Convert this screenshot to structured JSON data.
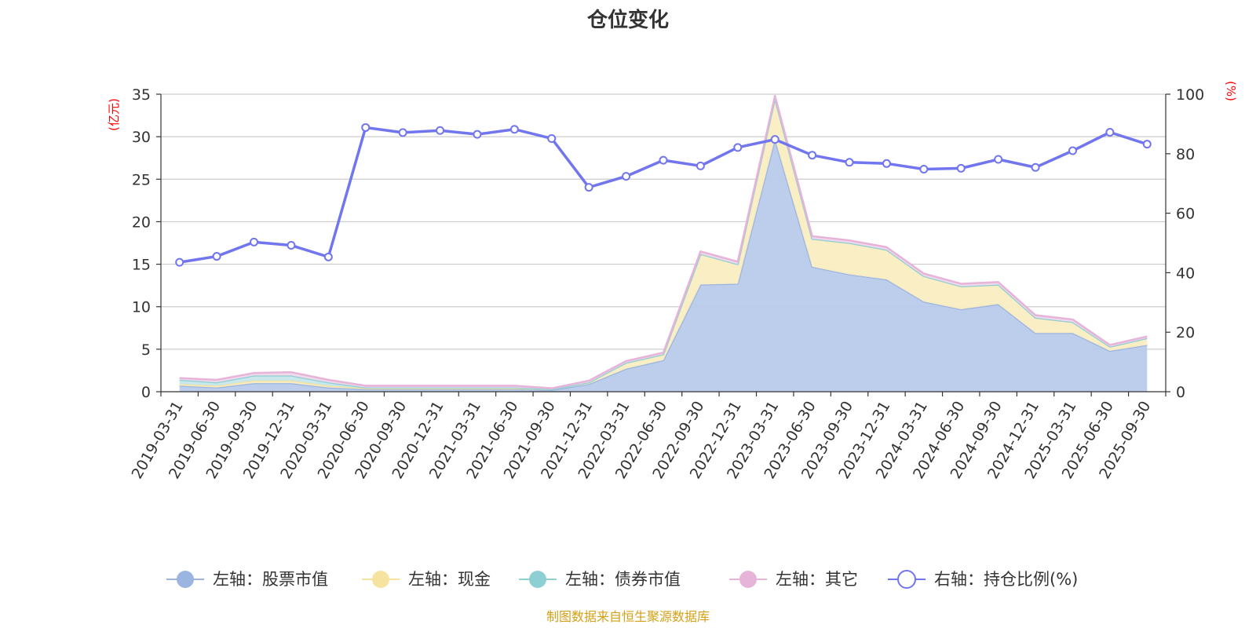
{
  "chart_data": {
    "type": "area+line",
    "title": "仓位变化",
    "left_axis_unit": "(亿元)",
    "right_axis_unit": "(%)",
    "left_ylim": [
      0,
      35
    ],
    "left_ticks": [
      "0",
      "5",
      "10",
      "15",
      "20",
      "25",
      "30",
      "35"
    ],
    "right_ylim": [
      0,
      100
    ],
    "right_ticks": [
      "0",
      "20",
      "40",
      "60",
      "80",
      "100"
    ],
    "categories": [
      "2019-03-31",
      "2019-06-30",
      "2019-09-30",
      "2019-12-31",
      "2020-03-31",
      "2020-06-30",
      "2020-09-30",
      "2020-12-31",
      "2021-03-31",
      "2021-06-30",
      "2021-09-30",
      "2021-12-31",
      "2022-03-31",
      "2022-06-30",
      "2022-09-30",
      "2022-12-31",
      "2023-03-31",
      "2023-06-30",
      "2023-09-30",
      "2023-12-31",
      "2024-03-31",
      "2024-06-30",
      "2024-09-30",
      "2024-12-31",
      "2025-03-31",
      "2025-06-30",
      "2025-09-30"
    ],
    "series": [
      {
        "name": "左轴：股票市值",
        "axis": "left",
        "kind": "area",
        "color": "#9bb5e0",
        "fill": "#b8cbea",
        "values": [
          0.7,
          0.5,
          1.0,
          1.0,
          0.5,
          0.3,
          0.3,
          0.3,
          0.3,
          0.3,
          0.2,
          0.9,
          2.7,
          3.7,
          12.6,
          12.7,
          29.7,
          14.7,
          13.8,
          13.2,
          10.6,
          9.7,
          10.3,
          6.9,
          6.9,
          4.8,
          5.5
        ]
      },
      {
        "name": "左轴：现金",
        "axis": "left",
        "kind": "area",
        "color": "#f7e3a0",
        "fill": "#faedc2",
        "values": [
          0.2,
          0.2,
          0.3,
          0.3,
          0.2,
          0.1,
          0.1,
          0.1,
          0.1,
          0.1,
          0.1,
          0.2,
          0.7,
          0.7,
          3.6,
          2.3,
          4.8,
          3.3,
          3.7,
          3.5,
          3.0,
          2.7,
          2.3,
          1.8,
          1.3,
          0.5,
          0.8
        ]
      },
      {
        "name": "左轴：债券市值",
        "axis": "left",
        "kind": "area",
        "color": "#8ecfd4",
        "fill": "#c6e7ea",
        "values": [
          0.5,
          0.4,
          0.6,
          0.6,
          0.4,
          0.1,
          0.1,
          0.1,
          0.1,
          0.1,
          0.0,
          0.0,
          0.0,
          0.0,
          0.0,
          0.0,
          0.0,
          0.0,
          0.0,
          0.0,
          0.0,
          0.0,
          0.0,
          0.0,
          0.0,
          0.0,
          0.0
        ]
      },
      {
        "name": "左轴：其它",
        "axis": "left",
        "kind": "area",
        "color": "#e6b3d9",
        "fill": "#f1d9ec",
        "values": [
          0.2,
          0.3,
          0.3,
          0.4,
          0.3,
          0.2,
          0.2,
          0.2,
          0.2,
          0.2,
          0.1,
          0.2,
          0.2,
          0.2,
          0.3,
          0.3,
          0.3,
          0.3,
          0.3,
          0.3,
          0.3,
          0.3,
          0.3,
          0.3,
          0.3,
          0.2,
          0.2
        ]
      },
      {
        "name": "右轴：持仓比例(%)",
        "axis": "right",
        "kind": "line",
        "color": "#7175ee",
        "values": [
          43.5,
          45.5,
          50.3,
          49.2,
          45.3,
          88.8,
          87.1,
          87.8,
          86.5,
          88.2,
          85.1,
          68.7,
          72.4,
          77.8,
          75.9,
          82.1,
          84.8,
          79.5,
          77.1,
          76.7,
          74.8,
          75.1,
          78.1,
          75.4,
          81.0,
          87.2,
          83.2
        ]
      }
    ],
    "legend_position": "bottom",
    "grid": true,
    "source_note": "制图数据来自恒生聚源数据库"
  }
}
